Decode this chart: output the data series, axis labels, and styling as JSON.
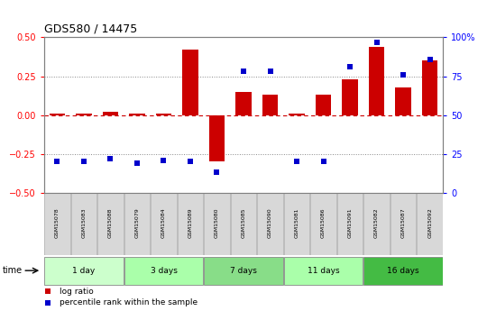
{
  "title": "GDS580 / 14475",
  "samples": [
    "GSM15078",
    "GSM15083",
    "GSM15088",
    "GSM15079",
    "GSM15084",
    "GSM15089",
    "GSM15080",
    "GSM15085",
    "GSM15090",
    "GSM15081",
    "GSM15086",
    "GSM15091",
    "GSM15082",
    "GSM15087",
    "GSM15092"
  ],
  "log_ratio": [
    0.01,
    0.01,
    0.02,
    0.01,
    0.01,
    0.42,
    -0.3,
    0.15,
    0.13,
    0.01,
    0.13,
    0.23,
    0.44,
    0.18,
    0.35
  ],
  "percentile_rank": [
    20,
    20,
    22,
    19,
    21,
    20,
    13,
    78,
    78,
    20,
    20,
    81,
    97,
    76,
    86
  ],
  "groups": [
    {
      "label": "1 day",
      "start": 0,
      "end": 3,
      "color": "#ccffcc"
    },
    {
      "label": "3 days",
      "start": 3,
      "end": 6,
      "color": "#aaffaa"
    },
    {
      "label": "7 days",
      "start": 6,
      "end": 9,
      "color": "#88dd88"
    },
    {
      "label": "11 days",
      "start": 9,
      "end": 12,
      "color": "#aaffaa"
    },
    {
      "label": "16 days",
      "start": 12,
      "end": 15,
      "color": "#44bb44"
    }
  ],
  "bar_color": "#cc0000",
  "dot_color": "#0000cc",
  "ylim_left": [
    -0.5,
    0.5
  ],
  "ylim_right": [
    0,
    100
  ],
  "yticks_left": [
    -0.5,
    -0.25,
    0,
    0.25,
    0.5
  ],
  "yticks_right": [
    0,
    25,
    50,
    75,
    100
  ],
  "hlines_dotted": [
    -0.25,
    0.25
  ],
  "hline_zero": 0,
  "zero_line_color": "#cc0000",
  "dotted_color": "#888888",
  "background_color": "#ffffff",
  "legend_log_ratio": "log ratio",
  "legend_percentile": "percentile rank within the sample",
  "time_label": "time"
}
